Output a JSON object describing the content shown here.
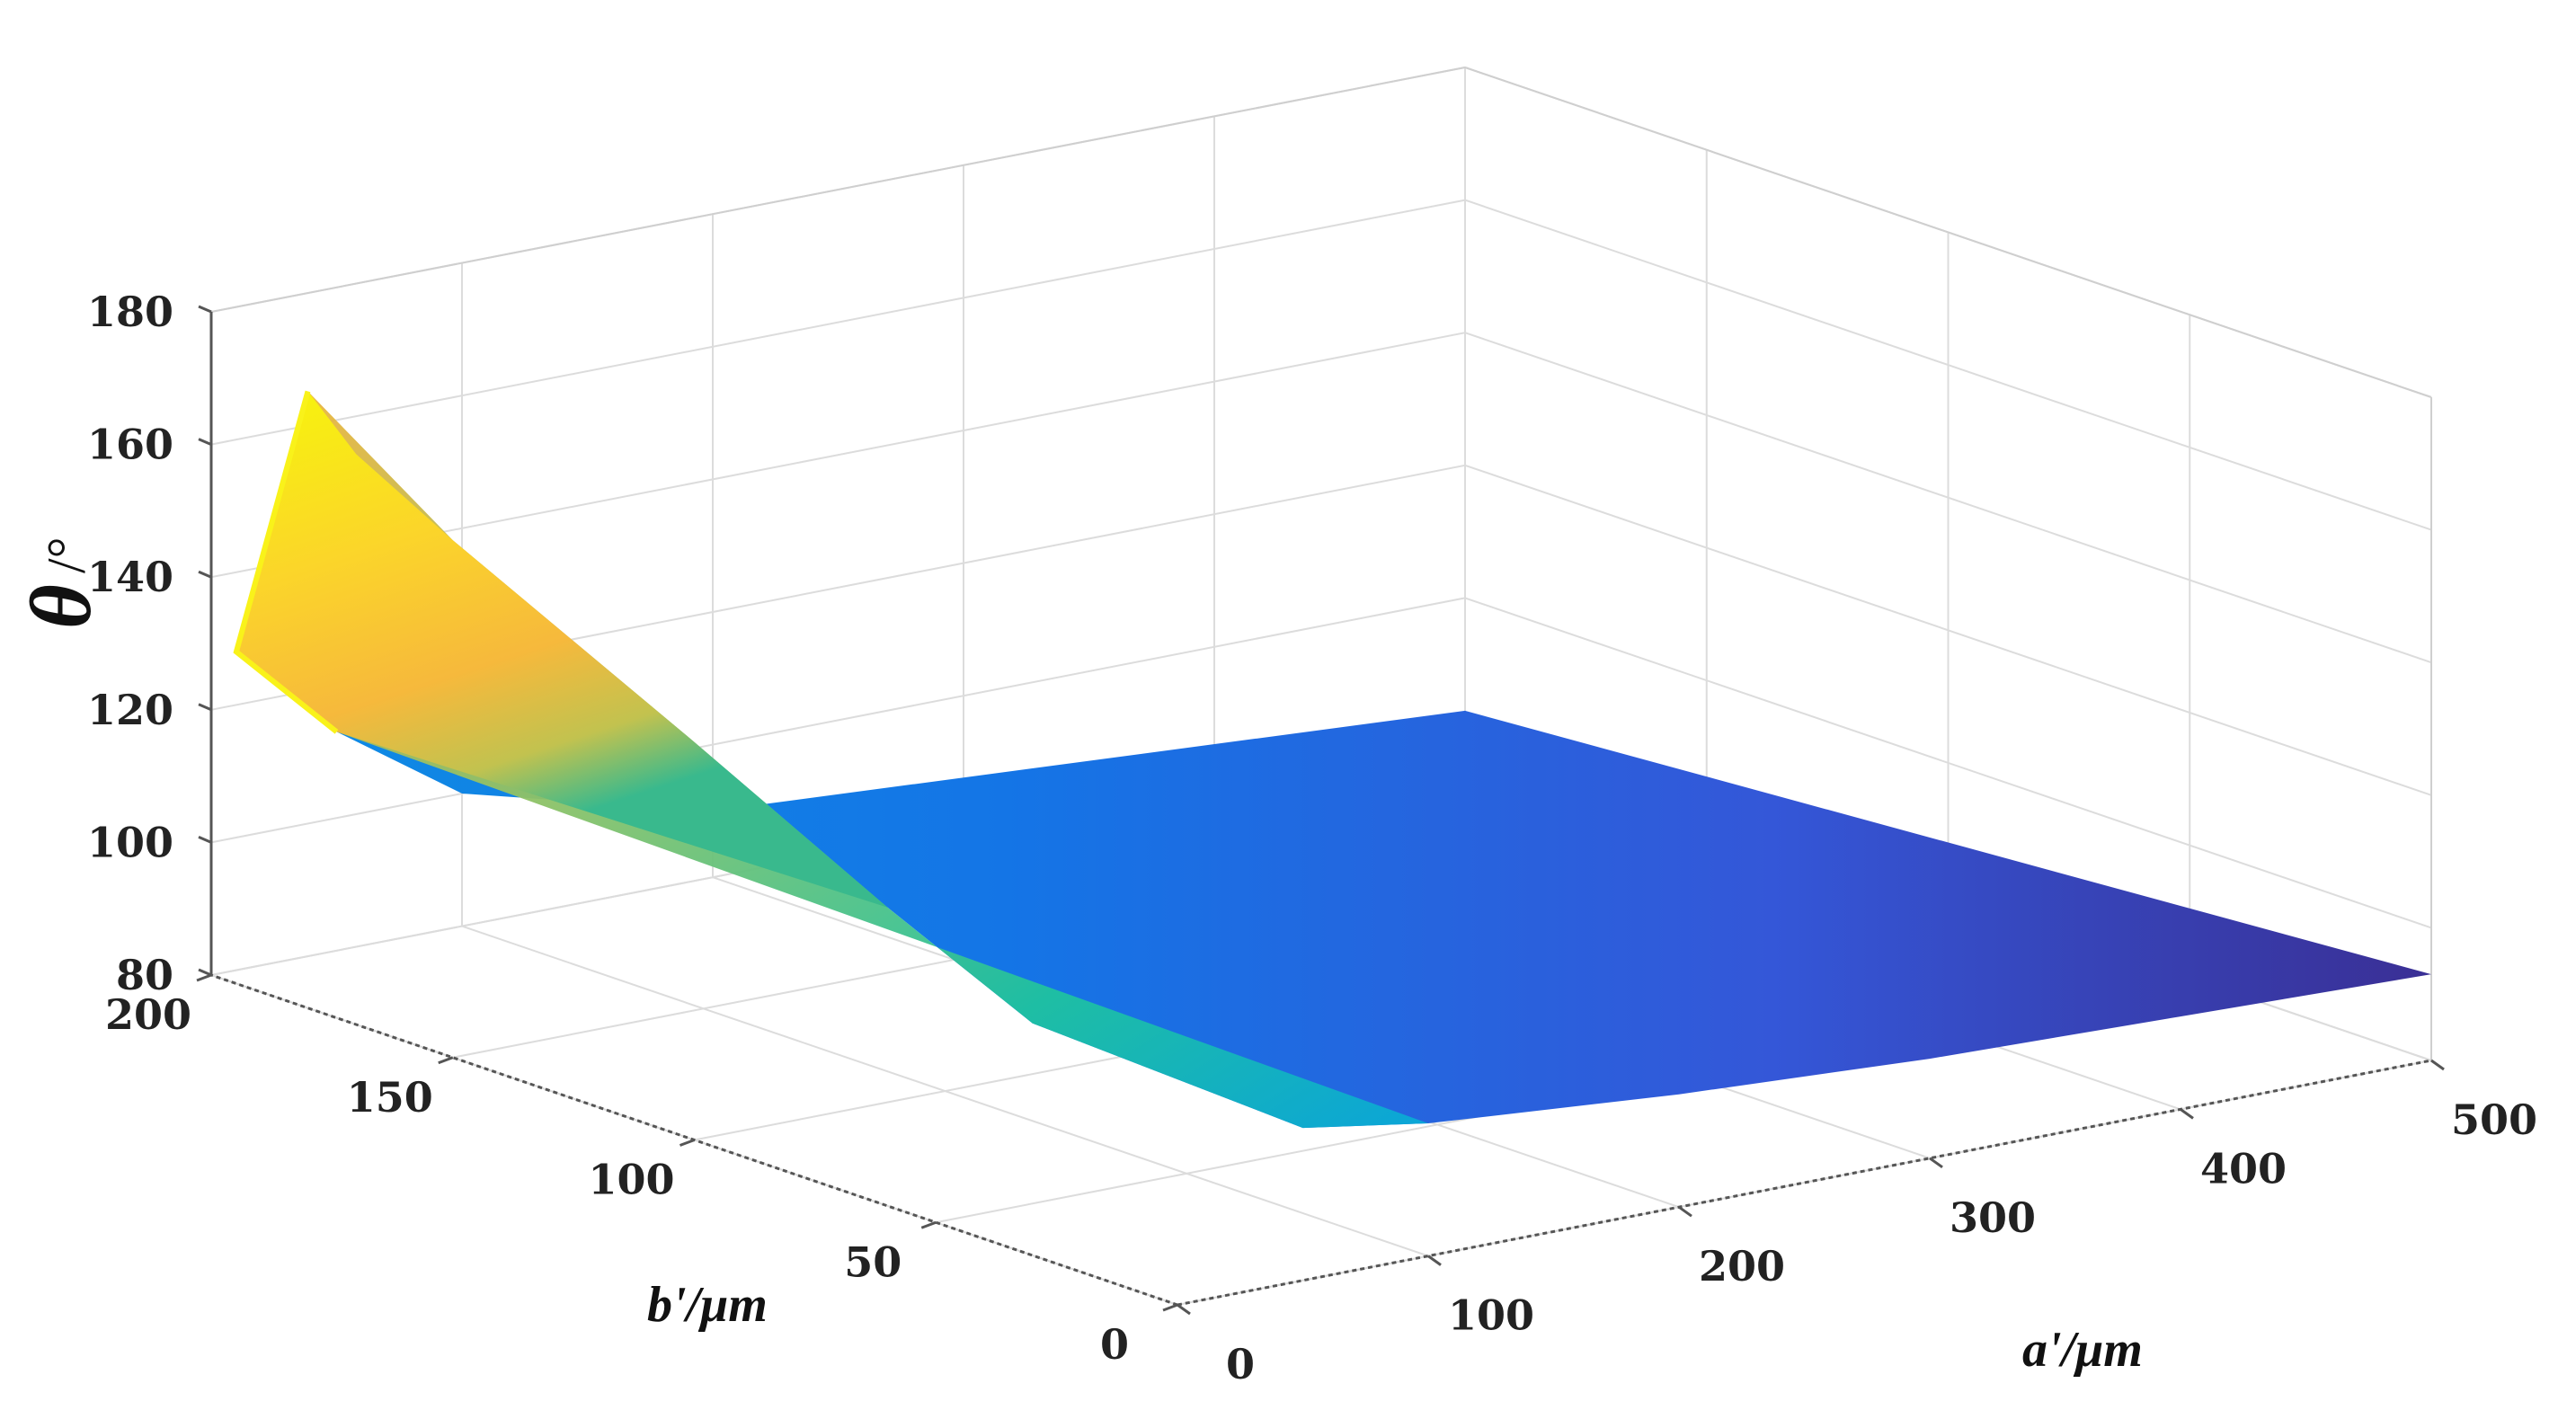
{
  "chart_data": {
    "type": "surface",
    "title": "",
    "xlabel": "a'/μm",
    "ylabel": "b'/μm",
    "zlabel": "θ",
    "zlabel_unit": "/°",
    "xlim": [
      0,
      500
    ],
    "ylim": [
      0,
      200
    ],
    "zlim": [
      80,
      180
    ],
    "x_ticks": [
      "0",
      "100",
      "200",
      "300",
      "400",
      "500"
    ],
    "y_ticks": [
      "0",
      "50",
      "100",
      "150",
      "200"
    ],
    "z_ticks": [
      "80",
      "100",
      "120",
      "140",
      "160",
      "180"
    ],
    "grid": true,
    "colormap": "parula",
    "colors": {
      "axes_edge": "#555555",
      "grid": "#dcdcdc",
      "colormap_stops": [
        "#352a87",
        "#0f5cdd",
        "#1481d6",
        "#06a4ca",
        "#2eb7a4",
        "#87bf77",
        "#d1bb59",
        "#fec832",
        "#f9fb0e"
      ]
    },
    "surface": {
      "description_points": [
        {
          "a": 0,
          "b": 180,
          "theta": 173
        },
        {
          "a": 0,
          "b": 170,
          "theta": 166
        },
        {
          "a": 0,
          "b": 150,
          "theta": 158
        },
        {
          "a": 0,
          "b": 100,
          "theta": 140
        },
        {
          "a": 0,
          "b": 60,
          "theta": 125
        },
        {
          "a": 0,
          "b": 30,
          "theta": 115
        },
        {
          "a": 50,
          "b": 0,
          "theta": 103
        },
        {
          "a": 100,
          "b": 0,
          "theta": 100
        },
        {
          "a": 200,
          "b": 0,
          "theta": 97
        },
        {
          "a": 300,
          "b": 0,
          "theta": 95
        },
        {
          "a": 400,
          "b": 0,
          "theta": 94
        },
        {
          "a": 500,
          "b": 0,
          "theta": 93
        },
        {
          "a": 500,
          "b": 200,
          "theta": 83
        },
        {
          "a": 200,
          "b": 200,
          "theta": 90
        },
        {
          "a": 100,
          "b": 200,
          "theta": 100
        },
        {
          "a": 50,
          "b": 200,
          "theta": 113
        },
        {
          "a": 10,
          "b": 200,
          "theta": 128
        }
      ]
    }
  }
}
